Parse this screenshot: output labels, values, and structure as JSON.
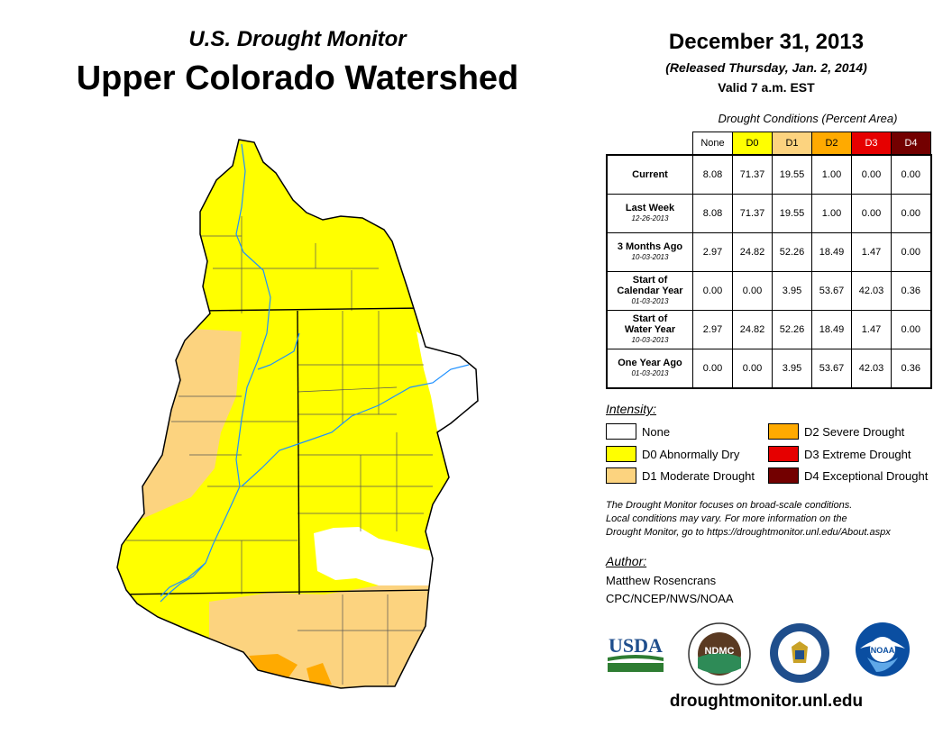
{
  "header": {
    "subtitle": "U.S. Drought Monitor",
    "title": "Upper Colorado Watershed",
    "date": "December 31, 2013",
    "released": "(Released Thursday, Jan. 2, 2014)",
    "valid": "Valid 7 a.m. EST"
  },
  "table": {
    "caption": "Drought Conditions (Percent Area)",
    "columns": [
      "None",
      "D0",
      "D1",
      "D2",
      "D3",
      "D4"
    ],
    "column_colors": [
      "#ffffff",
      "#ffff00",
      "#fcd37f",
      "#ffaa00",
      "#e60000",
      "#730000"
    ],
    "rows": [
      {
        "label": "Current",
        "label2": "",
        "date": "",
        "values": [
          "8.08",
          "71.37",
          "19.55",
          "1.00",
          "0.00",
          "0.00"
        ]
      },
      {
        "label": "Last Week",
        "label2": "",
        "date": "12-26-2013",
        "values": [
          "8.08",
          "71.37",
          "19.55",
          "1.00",
          "0.00",
          "0.00"
        ]
      },
      {
        "label": "3 Months Ago",
        "label2": "",
        "date": "10-03-2013",
        "values": [
          "2.97",
          "24.82",
          "52.26",
          "18.49",
          "1.47",
          "0.00"
        ]
      },
      {
        "label": "Start of",
        "label2": "Calendar Year",
        "date": "01-03-2013",
        "values": [
          "0.00",
          "0.00",
          "3.95",
          "53.67",
          "42.03",
          "0.36"
        ]
      },
      {
        "label": "Start of",
        "label2": "Water Year",
        "date": "10-03-2013",
        "values": [
          "2.97",
          "24.82",
          "52.26",
          "18.49",
          "1.47",
          "0.00"
        ]
      },
      {
        "label": "One Year Ago",
        "label2": "",
        "date": "01-03-2013",
        "values": [
          "0.00",
          "0.00",
          "3.95",
          "53.67",
          "42.03",
          "0.36"
        ]
      }
    ]
  },
  "legend": {
    "title": "Intensity:",
    "items": [
      {
        "label": "None",
        "color": "#ffffff"
      },
      {
        "label": "D0 Abnormally Dry",
        "color": "#ffff00"
      },
      {
        "label": "D1 Moderate Drought",
        "color": "#fcd37f"
      },
      {
        "label": "D2 Severe Drought",
        "color": "#ffaa00"
      },
      {
        "label": "D3 Extreme Drought",
        "color": "#e60000"
      },
      {
        "label": "D4 Exceptional Drought",
        "color": "#730000"
      }
    ]
  },
  "note": {
    "line1": "The Drought Monitor focuses on broad-scale conditions.",
    "line2": "Local conditions may vary. For more information on the",
    "line3": "Drought Monitor, go to https://droughtmonitor.unl.edu/About.aspx"
  },
  "author": {
    "title": "Author:",
    "name": "Matthew Rosencrans",
    "org": "CPC/NCEP/NWS/NOAA"
  },
  "logos": {
    "usda": "USDA",
    "ndmc": "NDMC",
    "noaa": "NOAA"
  },
  "website": "droughtmonitor.unl.edu"
}
